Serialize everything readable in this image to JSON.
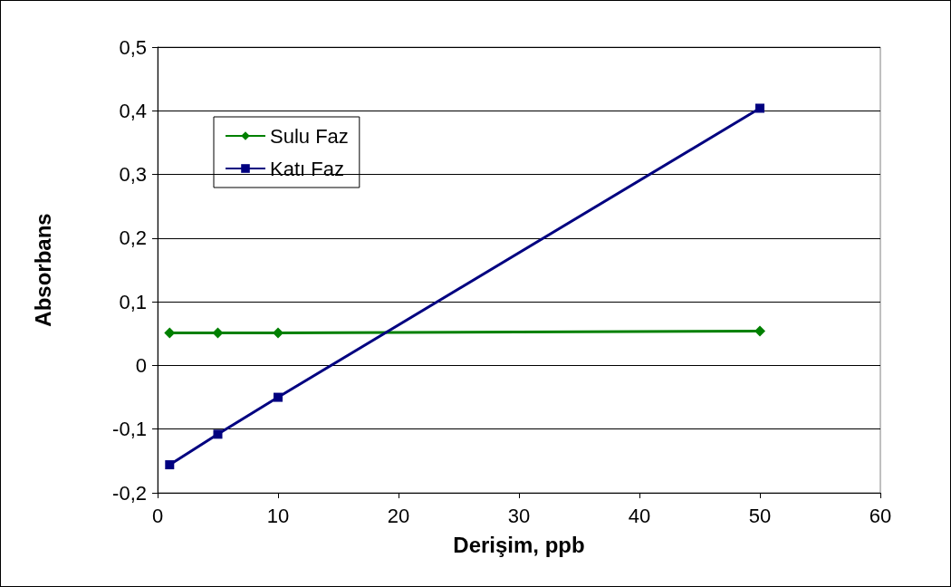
{
  "chart_data": {
    "type": "line",
    "xlabel": "Derişim, ppb",
    "ylabel": "Absorbans",
    "x": [
      1,
      5,
      10,
      50
    ],
    "xlim": [
      0,
      60
    ],
    "xticks": [
      0,
      10,
      20,
      30,
      40,
      50,
      60
    ],
    "ylim": [
      -0.2,
      0.5
    ],
    "yticks": [
      {
        "value": -0.2,
        "label": "-0,2"
      },
      {
        "value": -0.1,
        "label": "-0,1"
      },
      {
        "value": 0,
        "label": "0"
      },
      {
        "value": 0.1,
        "label": "0,1"
      },
      {
        "value": 0.2,
        "label": "0,2"
      },
      {
        "value": 0.3,
        "label": "0,3"
      },
      {
        "value": 0.4,
        "label": "0,4"
      },
      {
        "value": 0.5,
        "label": "0,5"
      }
    ],
    "grid": "y",
    "legend": "top left",
    "line_style": "solid",
    "series": [
      {
        "name": "Sulu Faz",
        "color": "#008000",
        "marker": "diamond",
        "values": [
          0.051,
          0.051,
          0.051,
          0.054
        ]
      },
      {
        "name": "Katı Faz",
        "color": "#000080",
        "marker": "square",
        "values": [
          -0.156,
          -0.108,
          -0.05,
          0.404
        ]
      }
    ]
  }
}
